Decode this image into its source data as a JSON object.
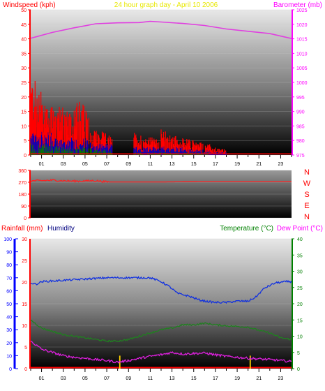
{
  "header": {
    "left_title": "Windspeed (kph)",
    "center_title": "24 hour graph day - April 10 2006",
    "right_title": "Barometer (mb)"
  },
  "compass": {
    "labels": [
      "N",
      "W",
      "S",
      "E",
      "N"
    ]
  },
  "bottom_header": {
    "rainfall_label": "Rainfall (mm)",
    "humidity_label": "Humidity",
    "temperature_label": "Temperature (°C)",
    "dewpoint_label": "Dew Point (°C)"
  },
  "colors": {
    "wind": "#ff0000",
    "gust_avg": "#0000c0",
    "wind_low": "#008000",
    "barometer": "#e040e0",
    "direction": "#ff2020",
    "humidity": "#1030e0",
    "temperature": "#208020",
    "dewpoint": "#e020e0",
    "rain": "#ffd000",
    "rainfall_axis": "#0000ff",
    "rainfall_baseline": "#ff0000"
  },
  "chart_data": [
    {
      "type": "line",
      "name": "wind-barometer",
      "x_ticks": [
        "01",
        "03",
        "05",
        "07",
        "09",
        "11",
        "13",
        "15",
        "17",
        "19",
        "21",
        "23"
      ],
      "y_left_ticks": [
        0,
        5,
        10,
        15,
        20,
        25,
        30,
        35,
        40,
        45,
        50
      ],
      "y_left_range": [
        0,
        50
      ],
      "y_right_ticks": [
        975,
        980,
        985,
        990,
        995,
        1000,
        1005,
        1010,
        1015,
        1020,
        1025
      ],
      "y_right_range": [
        975,
        1025
      ],
      "x_range": [
        0,
        24
      ],
      "barometer": {
        "x": [
          0,
          2,
          4,
          6,
          8,
          10,
          11,
          12,
          14,
          16,
          18,
          20,
          22,
          24
        ],
        "values": [
          1015.2,
          1017.2,
          1018.8,
          1020.2,
          1020.5,
          1020.6,
          1021.0,
          1020.8,
          1020.3,
          1019.6,
          1018.4,
          1017.6,
          1016.8,
          1015.1
        ]
      },
      "wind_activity": [
        {
          "from": 0,
          "to": 2,
          "wind_max": 28,
          "gust_max": 8,
          "low_max": 4
        },
        {
          "from": 2,
          "to": 4,
          "wind_max": 20,
          "gust_max": 6,
          "low_max": 3
        },
        {
          "from": 4,
          "to": 5.5,
          "wind_max": 22,
          "gust_max": 6,
          "low_max": 3
        },
        {
          "from": 5.5,
          "to": 7.5,
          "wind_max": 10,
          "gust_max": 4,
          "low_max": 2
        },
        {
          "from": 9.5,
          "to": 12,
          "wind_max": 8,
          "gust_max": 3,
          "low_max": 1
        },
        {
          "from": 12,
          "to": 14,
          "wind_max": 9,
          "gust_max": 3,
          "low_max": 1
        },
        {
          "from": 14,
          "to": 16.5,
          "wind_max": 6,
          "gust_max": 2,
          "low_max": 1
        },
        {
          "from": 16.5,
          "to": 18,
          "wind_max": 3,
          "gust_max": 1,
          "low_max": 0
        }
      ]
    },
    {
      "type": "line",
      "name": "wind-direction",
      "y_ticks": [
        0,
        90,
        180,
        270,
        360
      ],
      "y_range": [
        0,
        360
      ],
      "x_range": [
        0,
        24
      ],
      "direction": {
        "x": [
          0,
          2,
          4,
          6,
          7,
          8,
          12,
          16,
          20,
          24
        ],
        "values": [
          280,
          285,
          278,
          282,
          272,
          272,
          272,
          275,
          275,
          275
        ]
      }
    },
    {
      "type": "line",
      "name": "humidity-temperature",
      "x_ticks": [
        "01",
        "03",
        "05",
        "07",
        "09",
        "11",
        "13",
        "15",
        "17",
        "19",
        "21",
        "23"
      ],
      "x_range": [
        0,
        24
      ],
      "rainfall_ticks": [
        0,
        5,
        10,
        15,
        20,
        25,
        30
      ],
      "rainfall_range": [
        0,
        30
      ],
      "humidity_ticks": [
        0,
        10,
        20,
        30,
        40,
        50,
        60,
        70,
        80,
        90,
        100
      ],
      "humidity_range": [
        0,
        100
      ],
      "temperature_ticks": [
        0,
        5,
        10,
        15,
        20,
        25,
        30,
        35,
        40
      ],
      "temperature_range": [
        0,
        40
      ],
      "humidity": {
        "x": [
          0,
          0.5,
          1,
          3,
          5,
          7,
          9,
          11,
          12,
          12.8,
          13.5,
          14.5,
          15.5,
          16,
          17,
          18,
          19,
          20,
          20.7,
          21.5,
          22.5,
          23.5,
          24
        ],
        "values": [
          66,
          65,
          67,
          68,
          69,
          70,
          70,
          70,
          67,
          63,
          58,
          56,
          53,
          52,
          51,
          51,
          52,
          52,
          55,
          62,
          66,
          67,
          67
        ]
      },
      "temperature": {
        "x": [
          0,
          1,
          2,
          3,
          4,
          5,
          6,
          7,
          8,
          9,
          10,
          11,
          12,
          13,
          14,
          15,
          16,
          17,
          18,
          19,
          20,
          21,
          22,
          23,
          24
        ],
        "values": [
          15,
          12.5,
          11.5,
          10.5,
          10,
          9.5,
          9,
          8.5,
          8.5,
          9,
          10,
          11,
          12,
          12.5,
          13.5,
          13.5,
          14,
          13.5,
          13.2,
          13,
          12.8,
          11.8,
          11,
          9.5,
          9
        ]
      },
      "dewpoint": {
        "x": [
          0,
          1,
          2,
          3,
          4,
          5,
          6,
          7,
          8,
          9,
          10,
          11,
          12,
          13,
          14,
          15,
          16,
          17,
          18,
          19,
          20,
          21,
          22,
          23,
          24
        ],
        "values": [
          8.5,
          6,
          5,
          4,
          3.5,
          3.2,
          2.8,
          2.5,
          2,
          2.5,
          3.2,
          3.8,
          4.3,
          5,
          4.5,
          4.7,
          4.8,
          4.3,
          3.8,
          3.5,
          3.2,
          3,
          2.8,
          2.5,
          2.2
        ]
      },
      "rain_events": {
        "x": [
          8.2,
          20.2
        ],
        "values": [
          3,
          3
        ]
      }
    }
  ]
}
